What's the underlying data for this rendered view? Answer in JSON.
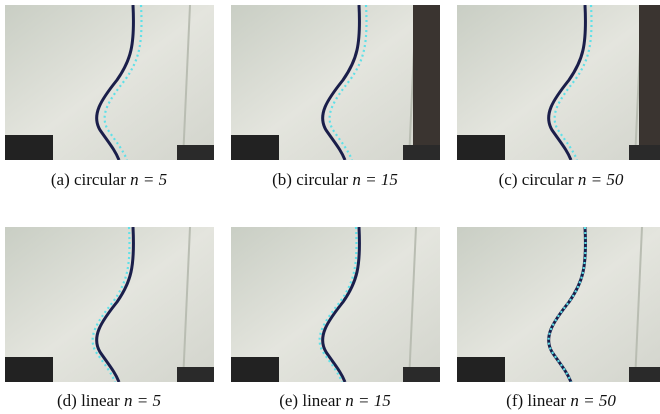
{
  "figure": {
    "panels": [
      {
        "label": "(a)",
        "method": "circular",
        "math": "n = 5"
      },
      {
        "label": "(b)",
        "method": "circular",
        "math": "n = 15"
      },
      {
        "label": "(c)",
        "method": "circular",
        "math": "n = 50"
      },
      {
        "label": "(d)",
        "method": "linear",
        "math": "n = 5"
      },
      {
        "label": "(e)",
        "method": "linear",
        "math": "n = 15"
      },
      {
        "label": "(f)",
        "method": "linear",
        "math": "n = 50"
      }
    ]
  }
}
